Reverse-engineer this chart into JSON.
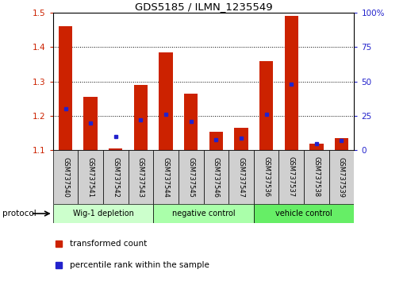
{
  "title": "GDS5185 / ILMN_1235549",
  "samples": [
    "GSM737540",
    "GSM737541",
    "GSM737542",
    "GSM737543",
    "GSM737544",
    "GSM737545",
    "GSM737546",
    "GSM737547",
    "GSM737536",
    "GSM737537",
    "GSM737538",
    "GSM737539"
  ],
  "red_values": [
    1.46,
    1.255,
    1.105,
    1.29,
    1.385,
    1.265,
    1.155,
    1.165,
    1.36,
    1.49,
    1.12,
    1.135
  ],
  "blue_values_pct": [
    30,
    20,
    10,
    22,
    26,
    21,
    8,
    9,
    26,
    48,
    5,
    7
  ],
  "ylim_left": [
    1.1,
    1.5
  ],
  "ylim_right": [
    0,
    100
  ],
  "yticks_left": [
    1.1,
    1.2,
    1.3,
    1.4,
    1.5
  ],
  "yticks_right": [
    0,
    25,
    50,
    75,
    100
  ],
  "ytick_labels_right": [
    "0",
    "25",
    "50",
    "75",
    "100%"
  ],
  "groups": [
    {
      "label": "Wig-1 depletion",
      "indices": [
        0,
        1,
        2,
        3
      ],
      "color": "#ccffcc"
    },
    {
      "label": "negative control",
      "indices": [
        4,
        5,
        6,
        7
      ],
      "color": "#aaffaa"
    },
    {
      "label": "vehicle control",
      "indices": [
        8,
        9,
        10,
        11
      ],
      "color": "#66ee66"
    }
  ],
  "bar_color_red": "#cc2200",
  "blue_color": "#2222cc",
  "bar_width": 0.55,
  "grid_color": "black",
  "protocol_label": "protocol",
  "legend_red_label": "transformed count",
  "legend_blue_label": "percentile rank within the sample",
  "left_yaxis_color": "#cc2200",
  "right_yaxis_color": "#2222cc",
  "sample_box_color": "#d0d0d0",
  "group_colors": [
    "#ccffcc",
    "#aaffaa",
    "#66ee66"
  ]
}
